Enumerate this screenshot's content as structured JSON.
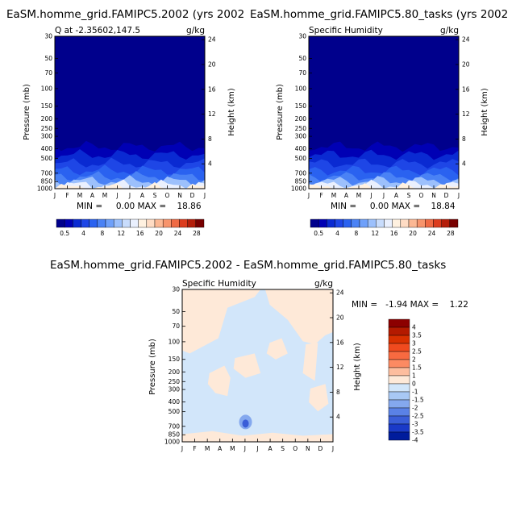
{
  "chart_data": [
    {
      "type": "heatmap",
      "panel": "top-left",
      "title": "EaSM.homme_grid.FAMIPC5.2002 (yrs 2002",
      "subtitle_left": "Q at -2.35602,147.5",
      "subtitle_right": "g/kg",
      "xlabel": "",
      "ylabel": "Pressure (mb)",
      "y2label": "Height (km)",
      "x_ticks": [
        "J",
        "F",
        "M",
        "A",
        "M",
        "J",
        "J",
        "A",
        "S",
        "O",
        "N",
        "D",
        "J"
      ],
      "y_ticks": [
        "30",
        "50",
        "70",
        "100",
        "150",
        "200",
        "250",
        "300",
        "400",
        "500",
        "700",
        "850",
        "1000"
      ],
      "y2_ticks": [
        "24",
        "20",
        "16",
        "12",
        "8",
        "4"
      ],
      "stats": "MIN =     0.00 MAX =    18.86",
      "colorbar_labels": [
        "0.5",
        "4",
        "8",
        "12",
        "16",
        "20",
        "24",
        "28"
      ],
      "band_tops_mb": [
        380,
        460,
        560,
        660,
        760,
        840,
        920,
        985
      ],
      "band_levels": [
        0.5,
        2,
        4,
        6,
        8,
        10,
        12,
        14,
        16
      ]
    },
    {
      "type": "heatmap",
      "panel": "top-right",
      "title": "EaSM.homme_grid.FAMIPC5.80_tasks (yrs 2002",
      "subtitle_left": "Specific Humidity",
      "subtitle_right": "g/kg",
      "xlabel": "",
      "ylabel": "Pressure (mb)",
      "y2label": "Height (km)",
      "x_ticks": [
        "J",
        "F",
        "M",
        "A",
        "M",
        "J",
        "J",
        "A",
        "S",
        "O",
        "N",
        "D",
        "J"
      ],
      "y_ticks": [
        "30",
        "50",
        "70",
        "100",
        "150",
        "200",
        "250",
        "300",
        "400",
        "500",
        "700",
        "850",
        "1000"
      ],
      "y2_ticks": [
        "24",
        "20",
        "16",
        "12",
        "8",
        "4"
      ],
      "stats": "MIN =     0.00 MAX =    18.84",
      "colorbar_labels": [
        "0.5",
        "4",
        "8",
        "12",
        "16",
        "20",
        "24",
        "28"
      ],
      "band_tops_mb": [
        380,
        460,
        560,
        660,
        760,
        840,
        920,
        985
      ],
      "band_levels": [
        0.5,
        2,
        4,
        6,
        8,
        10,
        12,
        14,
        16
      ]
    },
    {
      "type": "heatmap",
      "panel": "bottom",
      "title": "EaSM.homme_grid.FAMIPC5.2002 - EaSM.homme_grid.FAMIPC5.80_tasks",
      "subtitle_left": "Specific Humidity",
      "subtitle_right": "g/kg",
      "xlabel": "",
      "ylabel": "Pressure (mb)",
      "y2label": "Height (km)",
      "x_ticks": [
        "J",
        "F",
        "M",
        "A",
        "M",
        "J",
        "J",
        "A",
        "S",
        "O",
        "N",
        "D",
        "J"
      ],
      "y_ticks": [
        "30",
        "50",
        "70",
        "100",
        "150",
        "200",
        "250",
        "300",
        "400",
        "500",
        "700",
        "850",
        "1000"
      ],
      "y2_ticks": [
        "24",
        "20",
        "16",
        "12",
        "8",
        "4"
      ],
      "stats": "MIN =   -1.94 MAX =    1.22",
      "colorbar_labels": [
        "4",
        "3.5",
        "3",
        "2.5",
        "2",
        "1.5",
        "1",
        "0",
        "-1",
        "-1.5",
        "-2",
        "-2.5",
        "-3",
        "-3.5",
        "-4"
      ],
      "background_level": "-1 to 0",
      "patch_level": "0 to 1",
      "anomaly_level": "-2 to -1"
    }
  ],
  "colors": {
    "top_scale": [
      "#00008c",
      "#0000b4",
      "#0a2ad2",
      "#1e46e6",
      "#2a62f0",
      "#4a82f5",
      "#6ea0fa",
      "#9cc0fc",
      "#c8dcfc",
      "#eaf0fe",
      "#fff1e0",
      "#ffdcc4",
      "#fcb894",
      "#f7946c",
      "#ef6a44",
      "#dc3c1e",
      "#b41e0a",
      "#780000"
    ],
    "diff_scale": [
      "#8c0000",
      "#b41a00",
      "#d83000",
      "#f04a1e",
      "#f86a40",
      "#fc8a62",
      "#fdbd9e",
      "#fee9d8",
      "#d2e6fa",
      "#a8c8f4",
      "#84a8ee",
      "#5a82e6",
      "#3a5ed8",
      "#1a3ac8",
      "#001c9c"
    ]
  }
}
